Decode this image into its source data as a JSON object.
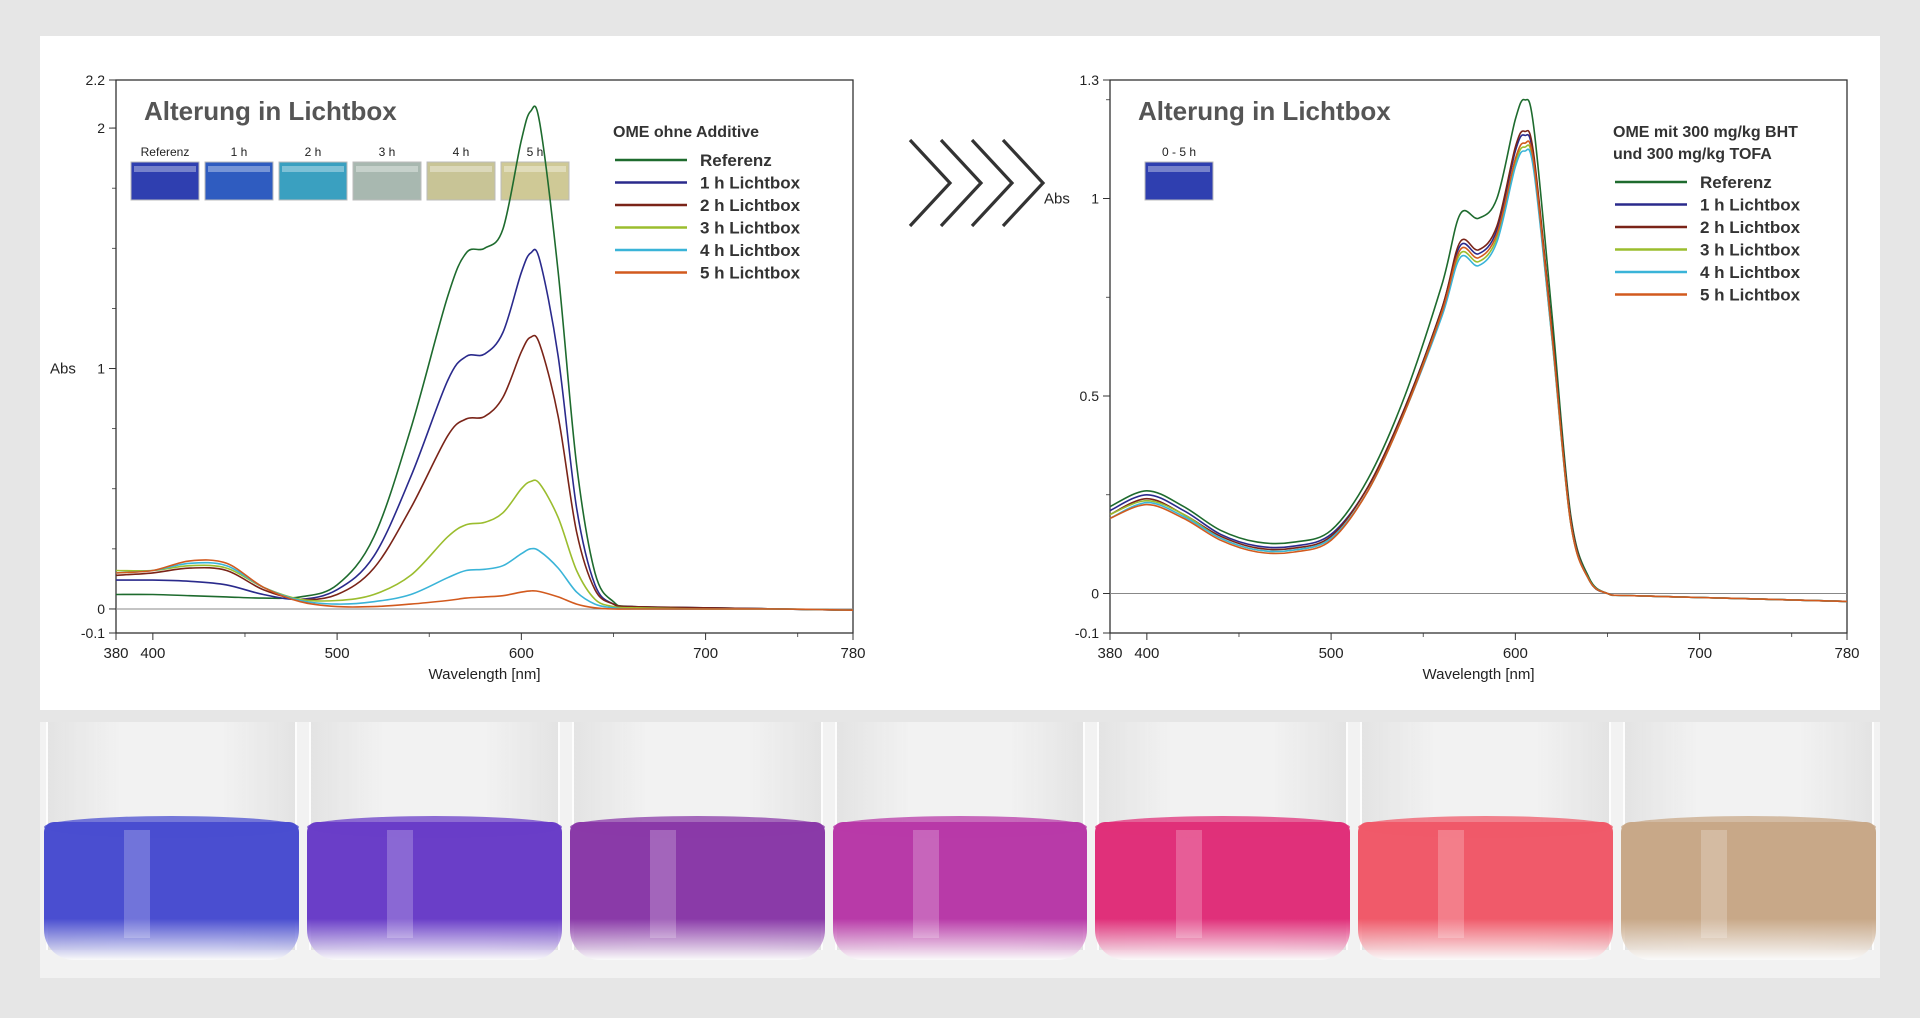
{
  "chart_data": [
    {
      "type": "line",
      "title": "Alterung in Lichtbox",
      "xlabel": "Wavelength [nm]",
      "ylabel": "Abs",
      "xlim": [
        380,
        780
      ],
      "ylim": [
        -0.1,
        2.2
      ],
      "xticks": [
        380,
        400,
        500,
        600,
        700,
        780
      ],
      "yticks": [
        -0.1,
        0,
        1,
        2,
        2.2
      ],
      "legend_title": "OME ohne Additive",
      "legend_position": "top-right",
      "swatches": [
        {
          "label": "Referenz",
          "color": "#2f3fb0"
        },
        {
          "label": "1 h",
          "color": "#2f5cc0"
        },
        {
          "label": "2 h",
          "color": "#3aa0c0"
        },
        {
          "label": "3 h",
          "color": "#a8b8b0"
        },
        {
          "label": "4 h",
          "color": "#c8c496"
        },
        {
          "label": "5 h",
          "color": "#cfc996"
        }
      ],
      "series": [
        {
          "name": "Referenz",
          "color": "#1e6b2e",
          "x": [
            380,
            400,
            420,
            440,
            460,
            480,
            500,
            520,
            540,
            560,
            570,
            580,
            590,
            600,
            605,
            610,
            620,
            630,
            640,
            650,
            660,
            700,
            740,
            780
          ],
          "y": [
            0.06,
            0.06,
            0.055,
            0.05,
            0.045,
            0.05,
            0.1,
            0.3,
            0.75,
            1.3,
            1.48,
            1.5,
            1.58,
            1.95,
            2.07,
            2.02,
            1.4,
            0.6,
            0.15,
            0.03,
            0.01,
            0.005,
            0.0,
            -0.005
          ]
        },
        {
          "name": "1 h Lichtbox",
          "color": "#2a2a8c",
          "x": [
            380,
            400,
            420,
            440,
            460,
            480,
            500,
            520,
            540,
            560,
            570,
            580,
            590,
            600,
            605,
            610,
            620,
            630,
            640,
            650,
            660,
            700,
            740,
            780
          ],
          "y": [
            0.12,
            0.12,
            0.115,
            0.1,
            0.06,
            0.04,
            0.08,
            0.22,
            0.55,
            0.95,
            1.05,
            1.06,
            1.15,
            1.4,
            1.48,
            1.45,
            1.05,
            0.42,
            0.1,
            0.02,
            0.01,
            0.005,
            0.0,
            -0.005
          ]
        },
        {
          "name": "2 h Lichtbox",
          "color": "#7a2418",
          "x": [
            380,
            400,
            420,
            440,
            460,
            480,
            500,
            520,
            540,
            560,
            570,
            580,
            590,
            600,
            605,
            610,
            620,
            630,
            640,
            650,
            660,
            700,
            740,
            780
          ],
          "y": [
            0.14,
            0.15,
            0.17,
            0.16,
            0.08,
            0.04,
            0.06,
            0.17,
            0.42,
            0.72,
            0.79,
            0.8,
            0.88,
            1.07,
            1.13,
            1.1,
            0.8,
            0.32,
            0.08,
            0.02,
            0.01,
            0.005,
            0.0,
            -0.005
          ]
        },
        {
          "name": "3 h Lichtbox",
          "color": "#9bbd2e",
          "x": [
            380,
            400,
            420,
            440,
            460,
            480,
            500,
            520,
            540,
            560,
            570,
            580,
            590,
            600,
            605,
            610,
            620,
            630,
            640,
            650,
            660,
            700,
            740,
            780
          ],
          "y": [
            0.16,
            0.16,
            0.18,
            0.17,
            0.09,
            0.04,
            0.035,
            0.06,
            0.14,
            0.3,
            0.35,
            0.36,
            0.4,
            0.5,
            0.53,
            0.52,
            0.38,
            0.16,
            0.04,
            0.01,
            0.005,
            0.0,
            0.0,
            -0.005
          ]
        },
        {
          "name": "4 h Lichtbox",
          "color": "#3ab4d8",
          "x": [
            380,
            400,
            420,
            440,
            460,
            480,
            500,
            520,
            540,
            560,
            570,
            580,
            590,
            600,
            605,
            610,
            620,
            630,
            640,
            650,
            660,
            700,
            740,
            780
          ],
          "y": [
            0.15,
            0.16,
            0.19,
            0.18,
            0.09,
            0.035,
            0.02,
            0.03,
            0.06,
            0.13,
            0.16,
            0.165,
            0.18,
            0.23,
            0.25,
            0.24,
            0.17,
            0.07,
            0.02,
            0.005,
            0.0,
            0.0,
            0.0,
            -0.005
          ]
        },
        {
          "name": "5 h Lichtbox",
          "color": "#d25a1e",
          "x": [
            380,
            400,
            420,
            440,
            460,
            480,
            500,
            520,
            540,
            560,
            570,
            580,
            590,
            600,
            605,
            610,
            620,
            630,
            640,
            650,
            660,
            700,
            740,
            780
          ],
          "y": [
            0.15,
            0.16,
            0.2,
            0.19,
            0.09,
            0.03,
            0.01,
            0.01,
            0.02,
            0.035,
            0.045,
            0.05,
            0.055,
            0.07,
            0.075,
            0.072,
            0.05,
            0.02,
            0.005,
            0.0,
            0.0,
            0.0,
            0.0,
            -0.005
          ]
        }
      ]
    },
    {
      "type": "line",
      "title": "Alterung in Lichtbox",
      "xlabel": "Wavelength [nm]",
      "ylabel": "Abs",
      "xlim": [
        380,
        780
      ],
      "ylim": [
        -0.1,
        1.3
      ],
      "xticks": [
        380,
        400,
        500,
        600,
        700,
        780
      ],
      "yticks": [
        -0.1,
        0,
        0.5,
        1,
        1.3
      ],
      "legend_title": "OME mit 300 mg/kg BHT",
      "legend_title_2": "und 300 mg/kg TOFA",
      "legend_position": "top-right",
      "swatches": [
        {
          "label": "0 - 5 h",
          "color": "#2f3fb0"
        }
      ],
      "series": [
        {
          "name": "Referenz",
          "color": "#1e6b2e",
          "x": [
            380,
            400,
            420,
            440,
            460,
            480,
            500,
            520,
            540,
            560,
            570,
            580,
            590,
            600,
            605,
            610,
            620,
            630,
            640,
            650,
            660,
            700,
            740,
            780
          ],
          "y": [
            0.22,
            0.26,
            0.22,
            0.16,
            0.13,
            0.13,
            0.16,
            0.29,
            0.5,
            0.78,
            0.96,
            0.95,
            1.0,
            1.2,
            1.25,
            1.18,
            0.7,
            0.2,
            0.04,
            0.0,
            -0.005,
            -0.01,
            -0.015,
            -0.02
          ]
        },
        {
          "name": "1 h Lichtbox",
          "color": "#2a2a8c",
          "x": [
            380,
            400,
            420,
            440,
            460,
            480,
            500,
            520,
            540,
            560,
            570,
            580,
            590,
            600,
            605,
            610,
            620,
            630,
            640,
            650,
            660,
            700,
            740,
            780
          ],
          "y": [
            0.21,
            0.25,
            0.21,
            0.15,
            0.12,
            0.12,
            0.15,
            0.27,
            0.47,
            0.72,
            0.88,
            0.86,
            0.92,
            1.12,
            1.16,
            1.1,
            0.66,
            0.19,
            0.035,
            0.0,
            -0.005,
            -0.01,
            -0.015,
            -0.02
          ]
        },
        {
          "name": "2 h Lichtbox",
          "color": "#7a2418",
          "x": [
            380,
            400,
            420,
            440,
            460,
            480,
            500,
            520,
            540,
            560,
            570,
            580,
            590,
            600,
            605,
            610,
            620,
            630,
            640,
            650,
            660,
            700,
            740,
            780
          ],
          "y": [
            0.2,
            0.24,
            0.2,
            0.145,
            0.115,
            0.115,
            0.145,
            0.27,
            0.47,
            0.72,
            0.89,
            0.87,
            0.93,
            1.13,
            1.17,
            1.11,
            0.66,
            0.19,
            0.035,
            0.0,
            -0.005,
            -0.01,
            -0.015,
            -0.02
          ]
        },
        {
          "name": "3 h Lichtbox",
          "color": "#9bbd2e",
          "x": [
            380,
            400,
            420,
            440,
            460,
            480,
            500,
            520,
            540,
            560,
            570,
            580,
            590,
            600,
            605,
            610,
            620,
            630,
            640,
            650,
            660,
            700,
            740,
            780
          ],
          "y": [
            0.2,
            0.235,
            0.2,
            0.14,
            0.11,
            0.11,
            0.14,
            0.26,
            0.46,
            0.71,
            0.86,
            0.84,
            0.9,
            1.09,
            1.13,
            1.08,
            0.64,
            0.18,
            0.035,
            0.0,
            -0.005,
            -0.01,
            -0.015,
            -0.02
          ]
        },
        {
          "name": "4 h Lichtbox",
          "color": "#3ab4d8",
          "x": [
            380,
            400,
            420,
            440,
            460,
            480,
            500,
            520,
            540,
            560,
            570,
            580,
            590,
            600,
            605,
            610,
            620,
            630,
            640,
            650,
            660,
            700,
            740,
            780
          ],
          "y": [
            0.19,
            0.23,
            0.195,
            0.14,
            0.11,
            0.11,
            0.14,
            0.26,
            0.46,
            0.7,
            0.85,
            0.83,
            0.89,
            1.08,
            1.12,
            1.07,
            0.64,
            0.18,
            0.035,
            0.0,
            -0.005,
            -0.01,
            -0.015,
            -0.02
          ]
        },
        {
          "name": "5 h Lichtbox",
          "color": "#d25a1e",
          "x": [
            380,
            400,
            420,
            440,
            460,
            480,
            500,
            520,
            540,
            560,
            570,
            580,
            590,
            600,
            605,
            610,
            620,
            630,
            640,
            650,
            660,
            700,
            740,
            780
          ],
          "y": [
            0.19,
            0.225,
            0.19,
            0.135,
            0.105,
            0.105,
            0.135,
            0.26,
            0.46,
            0.71,
            0.87,
            0.85,
            0.91,
            1.1,
            1.14,
            1.09,
            0.65,
            0.18,
            0.035,
            0.0,
            -0.005,
            -0.01,
            -0.015,
            -0.02
          ]
        }
      ]
    }
  ],
  "photo": {
    "vials": [
      {
        "color": "#4a4ed0"
      },
      {
        "color": "#6a3ec8"
      },
      {
        "color": "#8a3aa8"
      },
      {
        "color": "#b83aa8"
      },
      {
        "color": "#e0307a"
      },
      {
        "color": "#f05a6a"
      },
      {
        "color": "#c8a888"
      }
    ]
  },
  "colors": {
    "axis": "#333333",
    "arrow": "#333333"
  }
}
